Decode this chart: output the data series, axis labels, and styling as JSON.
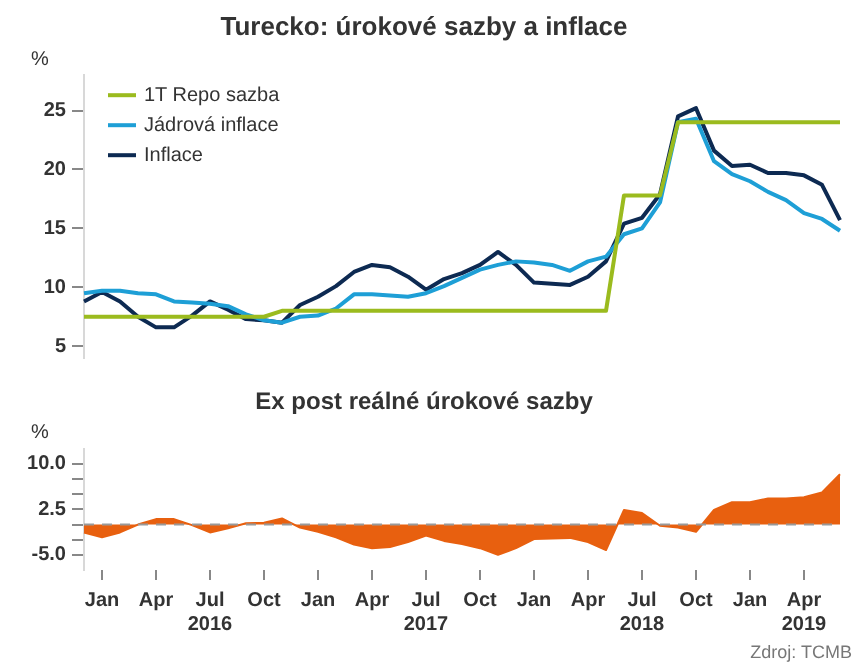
{
  "chart_data": [
    {
      "type": "line",
      "title": "Turecko: úrokové sazby a inflace",
      "ylabel": "%",
      "categories": [
        null,
        null,
        null,
        null,
        null,
        null,
        null,
        null,
        null,
        null,
        null,
        null,
        null,
        null,
        null,
        null,
        null,
        null,
        null,
        null,
        null,
        null,
        null,
        null,
        null,
        null,
        null,
        null,
        null,
        null,
        null,
        null,
        null,
        null,
        null,
        null,
        null,
        null,
        null,
        null,
        null,
        null,
        null
      ],
      "series": [
        {
          "name": "1T Repo sazba",
          "color": "#9bbb1e",
          "values": [
            7.5,
            7.5,
            7.5,
            7.5,
            7.5,
            7.5,
            7.5,
            7.5,
            7.5,
            7.5,
            7.5,
            8,
            8,
            8,
            8,
            8,
            8,
            8,
            8,
            8,
            8,
            8,
            8,
            8,
            8,
            8,
            8,
            8,
            8,
            8,
            17.8,
            17.8,
            17.8,
            24,
            24,
            24,
            24,
            24,
            24,
            24,
            24,
            24,
            24
          ]
        },
        {
          "name": "Jádrová inflace",
          "color": "#1e9fd6",
          "values": [
            9.5,
            9.7,
            9.7,
            9.5,
            9.4,
            8.8,
            8.7,
            8.6,
            8.4,
            7.7,
            7.2,
            7.0,
            7.5,
            7.6,
            8.2,
            9.4,
            9.4,
            9.3,
            9.2,
            9.5,
            10.1,
            10.8,
            11.5,
            11.9,
            12.2,
            12.1,
            11.9,
            11.4,
            12.2,
            12.6,
            14.5,
            15.0,
            17.2,
            24.0,
            24.3,
            20.7,
            19.6,
            19.0,
            18.1,
            17.4,
            16.3,
            15.8,
            14.8
          ]
        },
        {
          "name": "Inflace",
          "color": "#0d2a52",
          "values": [
            8.8,
            9.6,
            8.8,
            7.5,
            6.6,
            6.6,
            7.6,
            8.8,
            8.1,
            7.3,
            7.2,
            7.0,
            8.5,
            9.2,
            10.1,
            11.3,
            11.9,
            11.7,
            10.9,
            9.8,
            10.7,
            11.2,
            11.9,
            13.0,
            11.9,
            10.4,
            10.3,
            10.2,
            10.9,
            12.2,
            15.4,
            15.9,
            17.9,
            24.5,
            25.2,
            21.6,
            20.3,
            20.4,
            19.7,
            19.7,
            19.5,
            18.7,
            15.7
          ]
        }
      ],
      "ylim": [
        4,
        28
      ],
      "yticks": [
        5,
        10,
        15,
        20,
        25
      ],
      "tick_labels": "y",
      "legend": "top left",
      "marker": "none",
      "line_style": "solid"
    },
    {
      "type": "area",
      "title": "Ex post reálné úrokové sazby",
      "ylabel": "%",
      "categories": [
        null,
        "Jan",
        null,
        null,
        "Apr",
        null,
        null,
        "Jul\n2016",
        null,
        null,
        "Oct",
        null,
        null,
        "Jan",
        null,
        null,
        "Apr",
        null,
        null,
        "Jul\n2017",
        null,
        null,
        "Oct",
        null,
        null,
        "Jan",
        null,
        null,
        "Apr",
        null,
        null,
        "Jul\n2018",
        null,
        null,
        "Oct",
        null,
        null,
        "Jan",
        null,
        null,
        "Apr\n2019",
        null,
        null
      ],
      "series": [
        {
          "color": "#e8600f",
          "values": [
            -1.3,
            -2.1,
            -1.3,
            0.0,
            0.9,
            0.9,
            -0.1,
            -1.3,
            -0.6,
            0.2,
            0.3,
            1.0,
            -0.5,
            -1.2,
            -2.1,
            -3.3,
            -3.9,
            -3.7,
            -2.9,
            -1.8,
            -2.7,
            -3.2,
            -3.9,
            -5.0,
            -3.9,
            -2.4,
            -2.3,
            -2.2,
            -2.9,
            -4.2,
            2.4,
            1.9,
            -0.2,
            -0.5,
            -1.2,
            2.4,
            3.7,
            3.7,
            4.3,
            4.3,
            4.5,
            5.3,
            8.3
          ]
        }
      ],
      "ylim": [
        -7.5,
        12.5
      ],
      "yticks": [
        {
          "value": 10,
          "label": "10.0"
        },
        {
          "value": 7.5,
          "label": null
        },
        {
          "value": 5,
          "label": null
        },
        {
          "value": 2.5,
          "label": "2.5"
        },
        {
          "value": 0,
          "label": null
        },
        {
          "value": -2.5,
          "label": null
        },
        {
          "value": -5,
          "label": "-5.0"
        }
      ],
      "ref_lines": [
        {
          "axis": "y",
          "value": 0,
          "color": "#999999",
          "line_style": "dashed"
        }
      ],
      "marker": "none",
      "annotations": [
        "Zdroj: TCMB"
      ]
    }
  ]
}
